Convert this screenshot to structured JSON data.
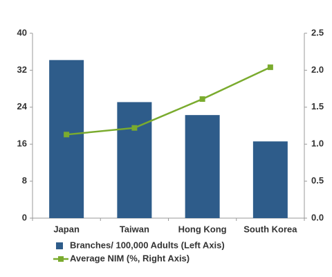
{
  "chart_data": {
    "type": "bar",
    "categories": [
      "Japan",
      "Taiwan",
      "Hong Kong",
      "South Korea"
    ],
    "series": [
      {
        "name": "Branches/ 100,000 Adults (Left Axis)",
        "type": "bar",
        "color": "#2e5c8a",
        "values": [
          34.2,
          25.1,
          22.3,
          16.6
        ]
      },
      {
        "name": "Average NIM (%, Right Axis)",
        "type": "line",
        "axis": "y2",
        "color": "#7aab2e",
        "values": [
          1.13,
          1.22,
          1.61,
          2.04
        ]
      }
    ],
    "ylim": [
      0,
      40
    ],
    "yticks": [
      0,
      8,
      16,
      24,
      32,
      40
    ],
    "y2lim": [
      0,
      2.5
    ],
    "y2ticks": [
      {
        "value": 0,
        "label": "0.0"
      },
      0.5,
      {
        "value": 1,
        "label": "1.0"
      },
      1.5,
      {
        "value": 2,
        "label": "2.0"
      },
      2.5
    ],
    "legend": "bottom"
  }
}
